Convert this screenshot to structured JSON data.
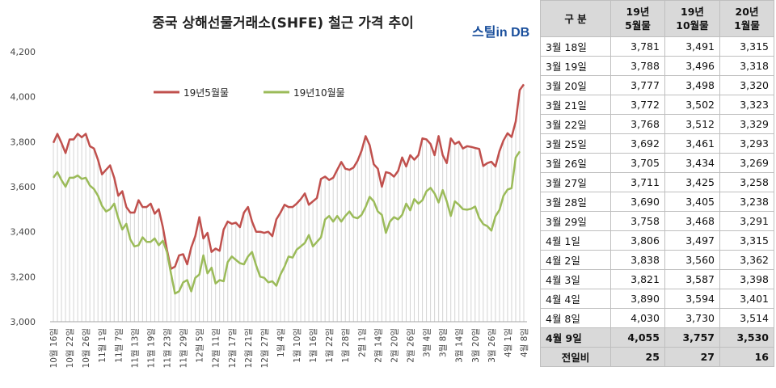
{
  "title": "중국 상해선물거래소(SHFE) 철근 가격 추이",
  "brand": "스틸in DB",
  "chart_data": {
    "type": "line",
    "ylim": [
      3000,
      4200
    ],
    "yticks": [
      "3,000",
      "3,200",
      "3,400",
      "3,600",
      "3,800",
      "4,000",
      "4,200"
    ],
    "ytick_values": [
      3000,
      3200,
      3400,
      3600,
      3800,
      4000,
      4200
    ],
    "xtick_labels": [
      "10월 16일",
      "10월 22일",
      "10월 26일",
      "11월 1일",
      "11월 7일",
      "11월 13일",
      "11월 19일",
      "11월 23일",
      "11월 29일",
      "12월 5일",
      "12월 11일",
      "12월 17일",
      "12월 21일",
      "12월 27일",
      "1월 4일",
      "1월 10일",
      "1월 16일",
      "1월 22일",
      "1월 28일",
      "2월 1일",
      "2월 14일",
      "2월 20일",
      "2월 26일",
      "3월 4일",
      "3월 8일",
      "3월 14일",
      "3월 20일",
      "3월 26일",
      "4월 1일",
      "4월 8일"
    ],
    "legend_position": "top-left",
    "series": [
      {
        "name": "19년5월물",
        "color": "#c0504d",
        "values": [
          3795,
          3835,
          3795,
          3750,
          3810,
          3810,
          3835,
          3820,
          3835,
          3780,
          3770,
          3720,
          3655,
          3675,
          3695,
          3640,
          3560,
          3580,
          3510,
          3485,
          3485,
          3540,
          3510,
          3510,
          3525,
          3480,
          3500,
          3420,
          3320,
          3235,
          3245,
          3295,
          3300,
          3255,
          3330,
          3380,
          3465,
          3370,
          3395,
          3310,
          3325,
          3315,
          3410,
          3445,
          3435,
          3440,
          3420,
          3485,
          3510,
          3445,
          3400,
          3400,
          3395,
          3400,
          3380,
          3455,
          3485,
          3520,
          3510,
          3510,
          3525,
          3545,
          3570,
          3520,
          3535,
          3550,
          3635,
          3645,
          3630,
          3640,
          3675,
          3710,
          3680,
          3675,
          3685,
          3715,
          3760,
          3825,
          3785,
          3700,
          3680,
          3600,
          3665,
          3660,
          3645,
          3670,
          3730,
          3690,
          3740,
          3720,
          3740,
          3815,
          3810,
          3790,
          3740,
          3825,
          3740,
          3705,
          3815,
          3790,
          3800,
          3770,
          3780,
          3777,
          3772,
          3768,
          3692,
          3705,
          3711,
          3690,
          3758,
          3806,
          3838,
          3821,
          3890,
          4030,
          4055
        ]
      },
      {
        "name": "19년10월물",
        "color": "#9bbb59",
        "values": [
          3640,
          3665,
          3630,
          3600,
          3640,
          3640,
          3650,
          3635,
          3640,
          3605,
          3590,
          3560,
          3515,
          3490,
          3500,
          3525,
          3460,
          3410,
          3435,
          3365,
          3335,
          3340,
          3375,
          3355,
          3355,
          3370,
          3340,
          3360,
          3310,
          3215,
          3125,
          3135,
          3175,
          3185,
          3135,
          3195,
          3210,
          3295,
          3215,
          3240,
          3170,
          3185,
          3180,
          3265,
          3290,
          3275,
          3260,
          3255,
          3290,
          3310,
          3250,
          3200,
          3195,
          3175,
          3180,
          3160,
          3210,
          3245,
          3290,
          3285,
          3320,
          3335,
          3350,
          3385,
          3335,
          3355,
          3375,
          3455,
          3470,
          3445,
          3470,
          3445,
          3470,
          3490,
          3465,
          3460,
          3475,
          3510,
          3555,
          3535,
          3490,
          3475,
          3395,
          3445,
          3465,
          3455,
          3475,
          3525,
          3495,
          3545,
          3525,
          3540,
          3580,
          3595,
          3570,
          3530,
          3585,
          3535,
          3470,
          3535,
          3520,
          3500,
          3498,
          3502,
          3512,
          3461,
          3434,
          3425,
          3405,
          3468,
          3497,
          3560,
          3587,
          3594,
          3730,
          3757
        ]
      }
    ]
  },
  "table": {
    "header": {
      "label": "구  분",
      "col1": "19년\n5월물",
      "col2": "19년\n10월물",
      "col3": "20년\n1월물"
    },
    "rows": [
      {
        "date": "3월 18일",
        "v1": "3,781",
        "v2": "3,491",
        "v3": "3,315"
      },
      {
        "date": "3월 19일",
        "v1": "3,788",
        "v2": "3,496",
        "v3": "3,318"
      },
      {
        "date": "3월 20일",
        "v1": "3,777",
        "v2": "3,498",
        "v3": "3,320"
      },
      {
        "date": "3월 21일",
        "v1": "3,772",
        "v2": "3,502",
        "v3": "3,323"
      },
      {
        "date": "3월 22일",
        "v1": "3,768",
        "v2": "3,512",
        "v3": "3,329"
      },
      {
        "date": "3월 25일",
        "v1": "3,692",
        "v2": "3,461",
        "v3": "3,293"
      },
      {
        "date": "3월 26일",
        "v1": "3,705",
        "v2": "3,434",
        "v3": "3,269"
      },
      {
        "date": "3월 27일",
        "v1": "3,711",
        "v2": "3,425",
        "v3": "3,258"
      },
      {
        "date": "3월 28일",
        "v1": "3,690",
        "v2": "3,405",
        "v3": "3,238"
      },
      {
        "date": "3월 29일",
        "v1": "3,758",
        "v2": "3,468",
        "v3": "3,291"
      },
      {
        "date": "4월 1일",
        "v1": "3,806",
        "v2": "3,497",
        "v3": "3,315"
      },
      {
        "date": "4월 2일",
        "v1": "3,838",
        "v2": "3,560",
        "v3": "3,362"
      },
      {
        "date": "4월 3일",
        "v1": "3,821",
        "v2": "3,587",
        "v3": "3,398"
      },
      {
        "date": "4월 4일",
        "v1": "3,890",
        "v2": "3,594",
        "v3": "3,401"
      },
      {
        "date": "4월 8일",
        "v1": "4,030",
        "v2": "3,730",
        "v3": "3,514"
      }
    ],
    "highlight": {
      "date": "4월 9일",
      "v1": "4,055",
      "v2": "3,757",
      "v3": "3,530"
    },
    "change": {
      "label": "전일비",
      "v1": "25",
      "v2": "27",
      "v3": "16"
    }
  }
}
